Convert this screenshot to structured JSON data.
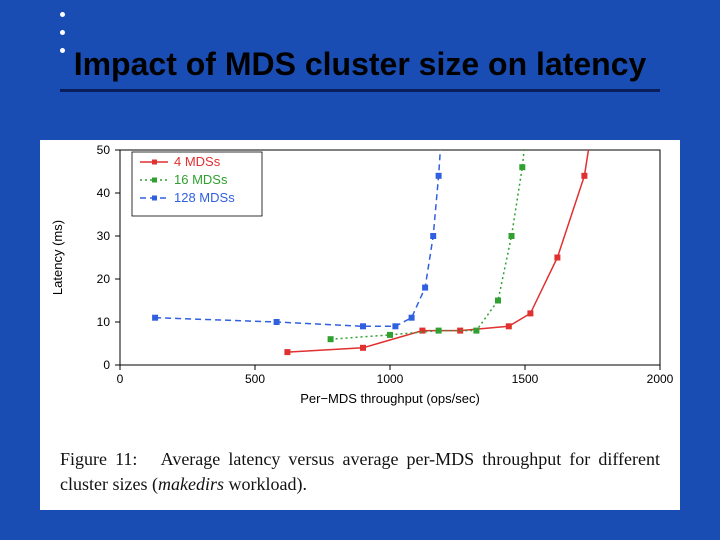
{
  "slide": {
    "background_color": "#1a4db3",
    "title_text": "Impact of MDS cluster size on latency",
    "title_color": "#000000",
    "title_fontsize": 32,
    "title_underline_color": "#091f5a",
    "deco_dot_color": "#ffffff",
    "deco_top_dots": [
      [
        60,
        12
      ],
      [
        60,
        30
      ],
      [
        60,
        48
      ]
    ],
    "deco_bottom_dots": [
      [
        360,
        500
      ],
      [
        400,
        500
      ],
      [
        440,
        500
      ],
      [
        480,
        500
      ],
      [
        520,
        500
      ],
      [
        560,
        500
      ],
      [
        600,
        500
      ],
      [
        640,
        500
      ]
    ]
  },
  "figure": {
    "caption_prefix": "Figure 11:",
    "caption_body": "Average latency versus average per-MDS throughput for different cluster sizes (",
    "caption_emph": "makedirs",
    "caption_tail": " workload).",
    "caption_fontsize": 18,
    "chart": {
      "type": "line",
      "background_color": "#ffffff",
      "plot_border_color": "#000000",
      "xlabel": "Per−MDS throughput (ops/sec)",
      "ylabel": "Latency (ms)",
      "label_fontsize": 13,
      "tick_fontsize": 12,
      "xlim": [
        0,
        2000
      ],
      "ylim": [
        0,
        50
      ],
      "xticks": [
        0,
        500,
        1000,
        1500,
        2000
      ],
      "yticks": [
        0,
        10,
        20,
        30,
        40,
        50
      ],
      "legend": {
        "position": "top-left",
        "items": [
          {
            "label": "4 MDSs",
            "color": "#e03030",
            "marker": "square",
            "dash": "solid"
          },
          {
            "label": "16 MDSs",
            "color": "#30a030",
            "marker": "square",
            "dash": "dot"
          },
          {
            "label": "128 MDSs",
            "color": "#3060e0",
            "marker": "square",
            "dash": "dash"
          }
        ],
        "fontsize": 13
      },
      "series": [
        {
          "name": "4 MDSs",
          "color": "#e03030",
          "marker": "square",
          "marker_size": 5,
          "dash": "solid",
          "line_width": 1.5,
          "points": [
            [
              620,
              3
            ],
            [
              900,
              4
            ],
            [
              1120,
              8
            ],
            [
              1260,
              8
            ],
            [
              1440,
              9
            ],
            [
              1520,
              12
            ],
            [
              1620,
              25
            ],
            [
              1720,
              44
            ],
            [
              1760,
              60
            ]
          ]
        },
        {
          "name": "16 MDSs",
          "color": "#30a030",
          "marker": "square",
          "marker_size": 5,
          "dash": "dot",
          "line_width": 1.5,
          "points": [
            [
              780,
              6
            ],
            [
              1000,
              7
            ],
            [
              1180,
              8
            ],
            [
              1320,
              8
            ],
            [
              1400,
              15
            ],
            [
              1450,
              30
            ],
            [
              1490,
              46
            ],
            [
              1510,
              58
            ]
          ]
        },
        {
          "name": "128 MDSs",
          "color": "#3060e0",
          "marker": "square",
          "marker_size": 5,
          "dash": "dash",
          "line_width": 1.5,
          "points": [
            [
              130,
              11
            ],
            [
              580,
              10
            ],
            [
              900,
              9
            ],
            [
              1020,
              9
            ],
            [
              1080,
              11
            ],
            [
              1130,
              18
            ],
            [
              1160,
              30
            ],
            [
              1180,
              44
            ],
            [
              1195,
              58
            ]
          ]
        }
      ]
    }
  }
}
